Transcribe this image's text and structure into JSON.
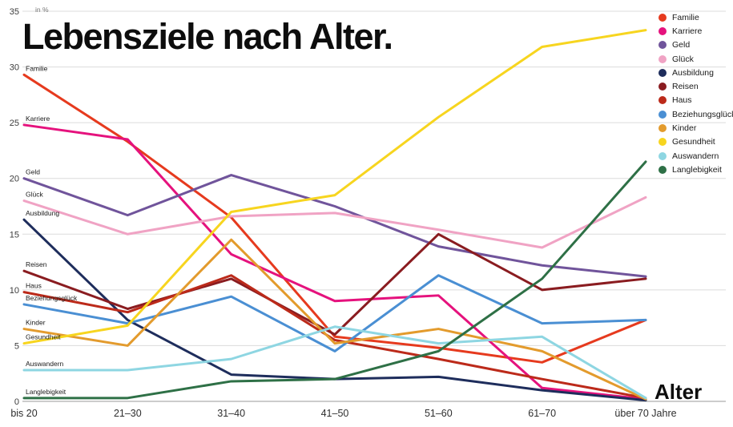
{
  "chart_data": {
    "type": "line",
    "title": "Lebensziele nach Alter.",
    "xlabel": "Alter",
    "ylabel": "in %",
    "ylim": [
      0,
      35
    ],
    "y_ticks": [
      0,
      5,
      10,
      15,
      20,
      25,
      30,
      35
    ],
    "grid": true,
    "legend_position": "top-right",
    "categories": [
      "bis 20",
      "21–30",
      "31–40",
      "41–50",
      "51–60",
      "61–70",
      "über 70 Jahre"
    ],
    "series": [
      {
        "name": "Familie",
        "color": "#e63a1e",
        "values": [
          29.3,
          23.3,
          16.5,
          5.8,
          4.8,
          3.5,
          7.3
        ]
      },
      {
        "name": "Karriere",
        "color": "#e5127d",
        "values": [
          24.8,
          23.5,
          13.2,
          9.0,
          9.5,
          1.2,
          0.2
        ]
      },
      {
        "name": "Geld",
        "color": "#70549b",
        "values": [
          20.0,
          16.7,
          20.3,
          17.5,
          13.9,
          12.2,
          11.2
        ]
      },
      {
        "name": "Glück",
        "color": "#f0a3c4",
        "values": [
          18.0,
          15.0,
          16.6,
          16.9,
          15.4,
          13.8,
          18.3
        ]
      },
      {
        "name": "Ausbildung",
        "color": "#1e2d5c",
        "values": [
          16.3,
          7.3,
          2.4,
          2.0,
          2.2,
          1.0,
          0.1
        ]
      },
      {
        "name": "Reisen",
        "color": "#8a1c20",
        "values": [
          11.7,
          8.3,
          11.0,
          6.0,
          15.0,
          10.0,
          11.0
        ]
      },
      {
        "name": "Haus",
        "color": "#bc2a1a",
        "values": [
          9.8,
          8.0,
          11.3,
          5.5,
          3.8,
          2.0,
          0.3
        ]
      },
      {
        "name": "Beziehungsglück",
        "color": "#4a8fd3",
        "values": [
          8.7,
          7.0,
          9.4,
          4.5,
          11.3,
          7.0,
          7.3
        ]
      },
      {
        "name": "Kinder",
        "color": "#e39b2d",
        "values": [
          6.5,
          5.0,
          14.5,
          5.2,
          6.5,
          4.5,
          0.2
        ]
      },
      {
        "name": "Gesundheit",
        "color": "#f7d51f",
        "values": [
          5.2,
          6.8,
          17.0,
          18.5,
          25.5,
          31.8,
          33.3
        ]
      },
      {
        "name": "Auswandern",
        "color": "#8ed6e2",
        "values": [
          2.8,
          2.8,
          3.8,
          6.7,
          5.2,
          5.8,
          0.3
        ]
      },
      {
        "name": "Langlebigkeit",
        "color": "#2e7046",
        "values": [
          0.3,
          0.3,
          1.8,
          2.0,
          4.5,
          11.0,
          21.5
        ]
      }
    ]
  }
}
